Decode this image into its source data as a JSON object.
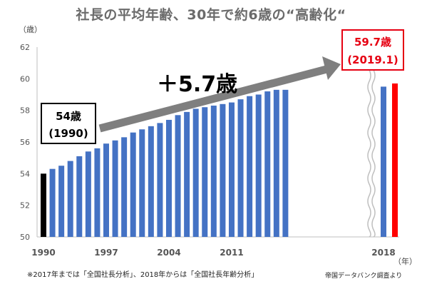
{
  "title": "社長の平均年齢、30年で約6歳の“高齢化“",
  "y_unit": "（歳）",
  "x_unit": "（年）",
  "footnote": "※2017年までは「全国社長分析」、2018年からは「全国社長年齢分析」",
  "source": "帝国データバンク調査より",
  "gain_label": "＋5.7歳",
  "start_box": {
    "line1": "54歳",
    "line2": "(1990)"
  },
  "end_box": {
    "line1": "59.7歳",
    "line2": "(2019.1)"
  },
  "colors": {
    "bar": "#4472c4",
    "start_bar": "#000000",
    "end_bar": "#ff0000",
    "arrow": "#7f7f7f",
    "end_box": "#e60012"
  },
  "chart_data": {
    "type": "bar",
    "title": "社長の平均年齢、30年で約6歳の“高齢化“",
    "ylabel": "（歳）",
    "xlabel": "（年）",
    "ylim": [
      50,
      62
    ],
    "yticks": [
      50,
      52,
      54,
      56,
      58,
      60,
      62
    ],
    "xtick_labels": [
      "1990",
      "1997",
      "2004",
      "2011",
      "2018"
    ],
    "grid": false,
    "categories": [
      "1990",
      "1991",
      "1992",
      "1993",
      "1994",
      "1995",
      "1996",
      "1997",
      "1998",
      "1999",
      "2000",
      "2001",
      "2002",
      "2003",
      "2004",
      "2005",
      "2006",
      "2007",
      "2008",
      "2009",
      "2010",
      "2011",
      "2012",
      "2013",
      "2014",
      "2015",
      "2016",
      "2017",
      "2018",
      "2019.1"
    ],
    "values": [
      54.0,
      54.3,
      54.5,
      54.8,
      55.1,
      55.4,
      55.6,
      55.9,
      56.1,
      56.3,
      56.6,
      56.8,
      57.0,
      57.2,
      57.4,
      57.7,
      57.9,
      58.1,
      58.2,
      58.3,
      58.4,
      58.5,
      58.7,
      58.9,
      59.0,
      59.2,
      59.3,
      59.3,
      59.5,
      59.7
    ]
  }
}
